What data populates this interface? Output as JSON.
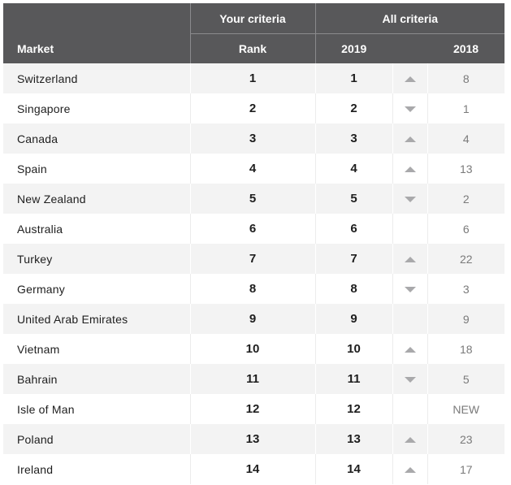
{
  "header": {
    "market_label": "Market",
    "your_criteria_label": "Your criteria",
    "all_criteria_label": "All criteria",
    "rank_label": "Rank",
    "year_2019_label": "2019",
    "year_2018_label": "2018"
  },
  "colors": {
    "header_bg": "#58585a",
    "row_alt_bg": "#f3f3f3",
    "arrow": "#a9a9ab"
  },
  "rows": [
    {
      "market": "Switzerland",
      "rank": "1",
      "y2019": "1",
      "trend": "up",
      "y2018": "8"
    },
    {
      "market": "Singapore",
      "rank": "2",
      "y2019": "2",
      "trend": "down",
      "y2018": "1"
    },
    {
      "market": "Canada",
      "rank": "3",
      "y2019": "3",
      "trend": "up",
      "y2018": "4"
    },
    {
      "market": "Spain",
      "rank": "4",
      "y2019": "4",
      "trend": "up",
      "y2018": "13"
    },
    {
      "market": "New Zealand",
      "rank": "5",
      "y2019": "5",
      "trend": "down",
      "y2018": "2"
    },
    {
      "market": "Australia",
      "rank": "6",
      "y2019": "6",
      "trend": "none",
      "y2018": "6"
    },
    {
      "market": "Turkey",
      "rank": "7",
      "y2019": "7",
      "trend": "up",
      "y2018": "22"
    },
    {
      "market": "Germany",
      "rank": "8",
      "y2019": "8",
      "trend": "down",
      "y2018": "3"
    },
    {
      "market": "United Arab Emirates",
      "rank": "9",
      "y2019": "9",
      "trend": "none",
      "y2018": "9"
    },
    {
      "market": "Vietnam",
      "rank": "10",
      "y2019": "10",
      "trend": "up",
      "y2018": "18"
    },
    {
      "market": "Bahrain",
      "rank": "11",
      "y2019": "11",
      "trend": "down",
      "y2018": "5"
    },
    {
      "market": "Isle of Man",
      "rank": "12",
      "y2019": "12",
      "trend": "none",
      "y2018": "NEW"
    },
    {
      "market": "Poland",
      "rank": "13",
      "y2019": "13",
      "trend": "up",
      "y2018": "23"
    },
    {
      "market": "Ireland",
      "rank": "14",
      "y2019": "14",
      "trend": "up",
      "y2018": "17"
    }
  ]
}
